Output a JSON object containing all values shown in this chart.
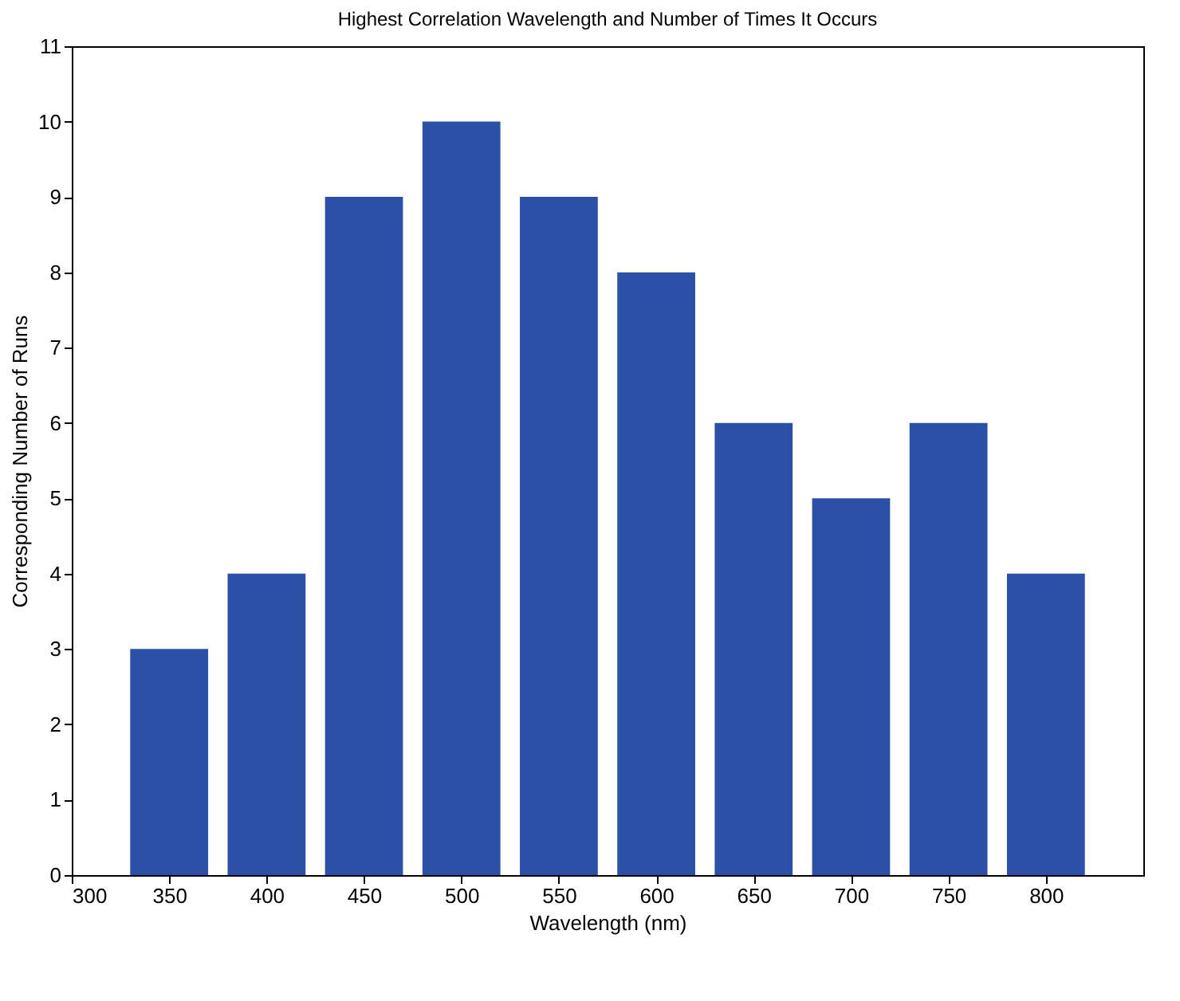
{
  "chart_data": {
    "type": "bar",
    "title": "Highest Correlation Wavelength and Number of Times It Occurs",
    "xlabel": "Wavelength (nm)",
    "ylabel": "Corresponding Number of Runs",
    "x": [
      350,
      400,
      450,
      500,
      550,
      600,
      650,
      700,
      750,
      800
    ],
    "values": [
      3,
      4,
      9,
      10,
      9,
      8,
      6,
      5,
      6,
      4
    ],
    "color": "#2b50a5",
    "xlim": [
      300,
      850
    ],
    "xticks": [
      300,
      350,
      400,
      450,
      500,
      550,
      600,
      650,
      700,
      750,
      800
    ],
    "ylim": [
      0,
      11
    ],
    "yticks": [
      0,
      1,
      2,
      3,
      4,
      5,
      6,
      7,
      8,
      9,
      10,
      11
    ]
  }
}
